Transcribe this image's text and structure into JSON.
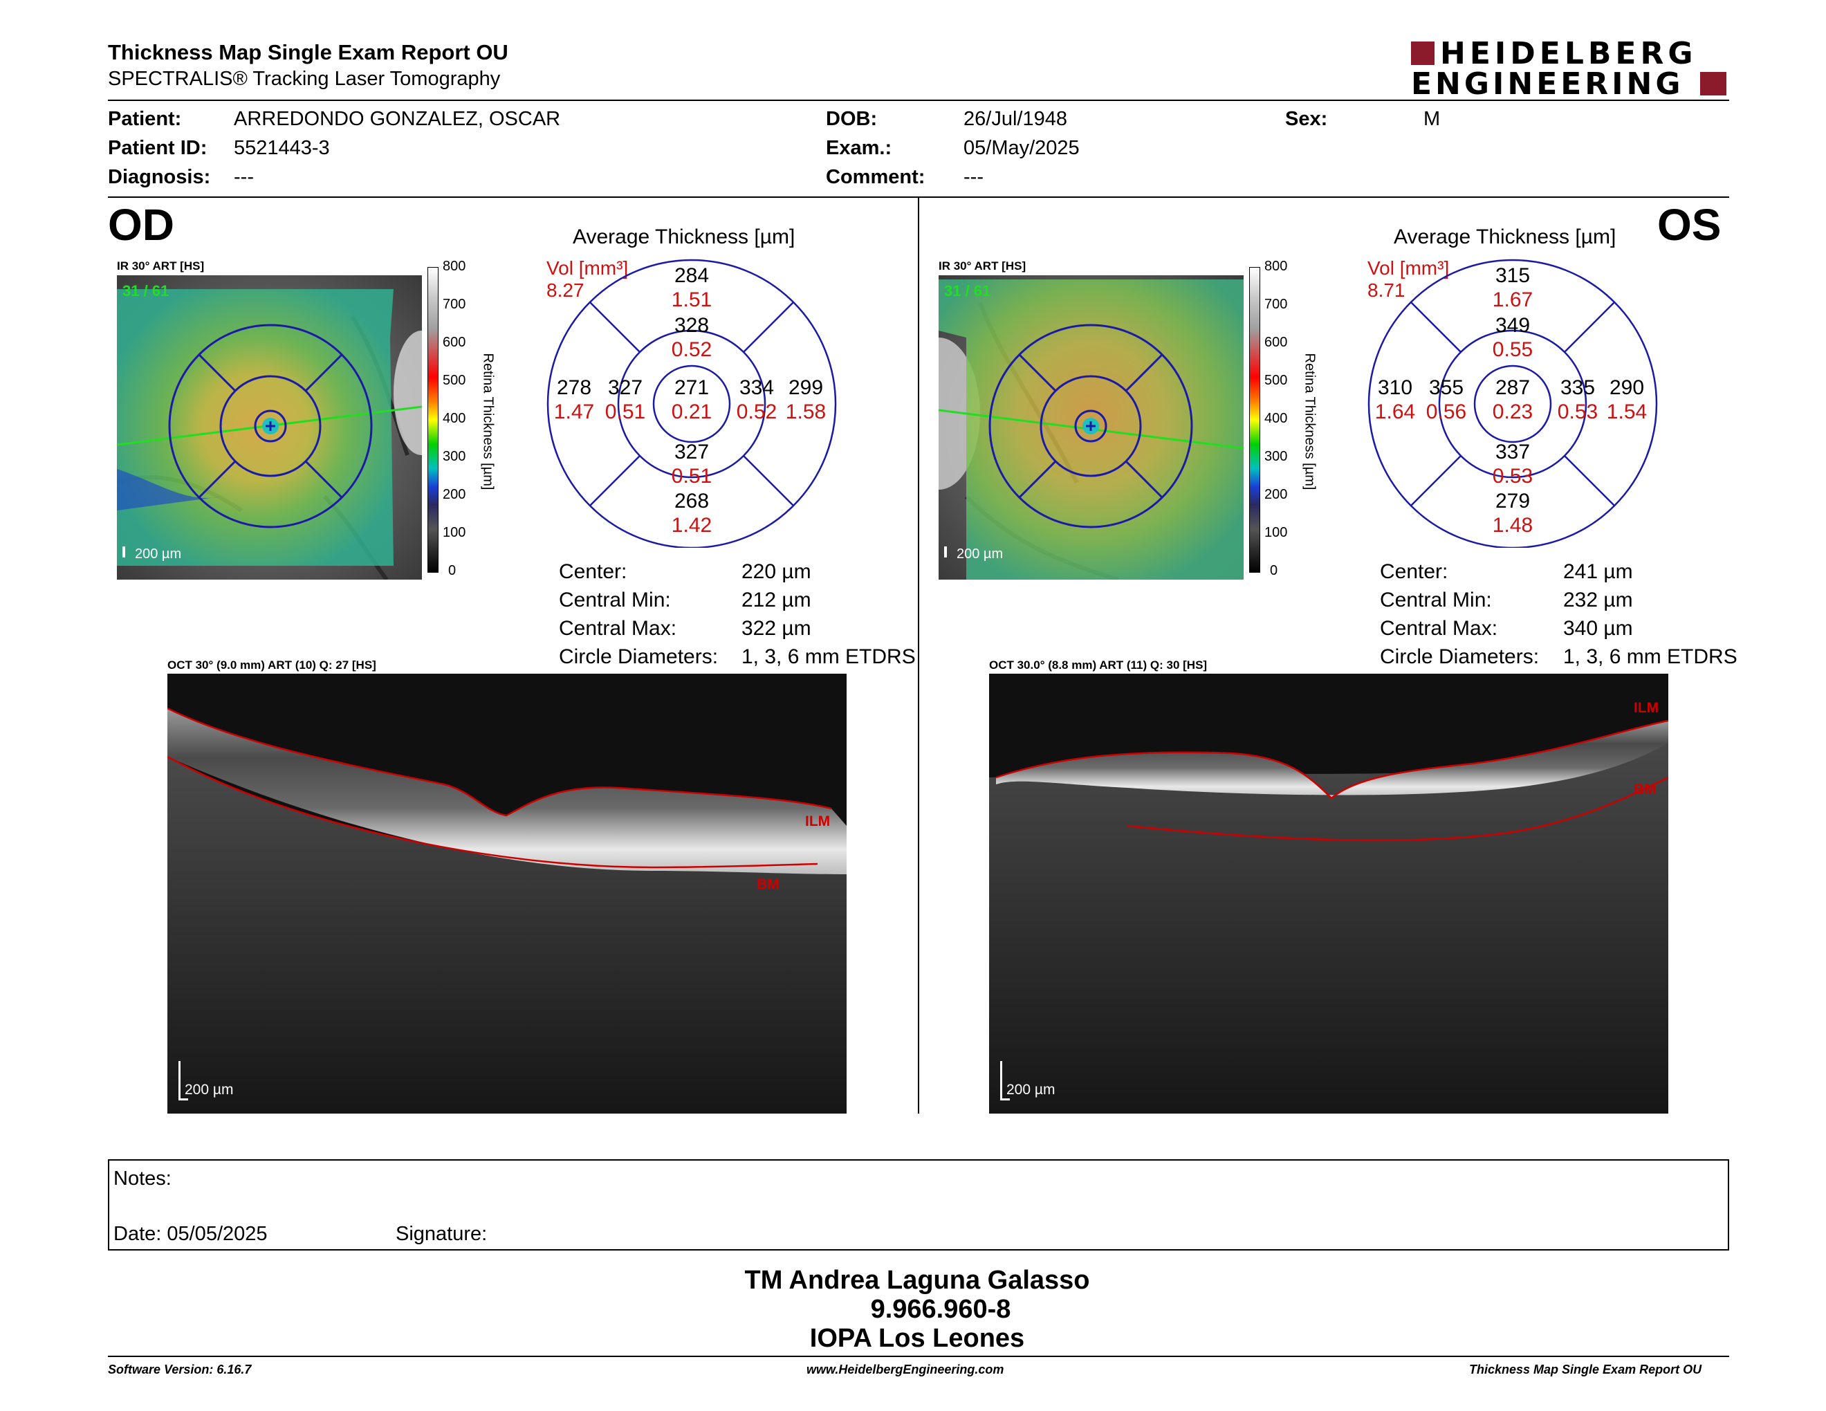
{
  "header": {
    "title": "Thickness Map Single Exam Report OU",
    "subtitle": "SPECTRALIS® Tracking Laser Tomography",
    "logo_line1": "HEIDELBERG",
    "logo_line2": "ENGINEERING",
    "logo_color": "#8b1a2b"
  },
  "patient": {
    "patient_label": "Patient:",
    "patient_value": "ARREDONDO GONZALEZ, OSCAR",
    "id_label": "Patient ID:",
    "id_value": "5521443-3",
    "diagnosis_label": "Diagnosis:",
    "diagnosis_value": "---",
    "dob_label": "DOB:",
    "dob_value": "26/Jul/1948",
    "exam_label": "Exam.:",
    "exam_value": "05/May/2025",
    "comment_label": "Comment:",
    "comment_value": "---",
    "sex_label": "Sex:",
    "sex_value": "M"
  },
  "colorbar": {
    "ticks": [
      "800",
      "700",
      "600",
      "500",
      "400",
      "300",
      "200",
      "100",
      "0"
    ],
    "label": "Retina  Thickness [µm]"
  },
  "od": {
    "eye": "OD",
    "fundus_label": "IR 30° ART [HS]",
    "fundus_count": "31 / 61",
    "fundus_scale": "200 µm",
    "avg_title": "Average Thickness [µm]",
    "vol_label": "Vol [mm³]",
    "vol_value": "8.27",
    "grid": {
      "outer_sup": "284",
      "outer_sup_vol": "1.51",
      "inner_sup": "328",
      "inner_sup_vol": "0.52",
      "outer_left": "278",
      "outer_left_vol": "1.47",
      "inner_left": "327",
      "inner_left_vol": "0.51",
      "center": "271",
      "center_vol": "0.21",
      "inner_right": "334",
      "inner_right_vol": "0.52",
      "outer_right": "299",
      "outer_right_vol": "1.58",
      "inner_inf": "327",
      "inner_inf_vol": "0.51",
      "outer_inf": "268",
      "outer_inf_vol": "1.42"
    },
    "stats": {
      "center_label": "Center:",
      "center_value": "220 µm",
      "min_label": "Central Min:",
      "min_value": "212 µm",
      "max_label": "Central Max:",
      "max_value": "322 µm",
      "diam_label": "Circle Diameters:",
      "diam_value": "1, 3, 6 mm ETDRS"
    },
    "oct_label": "OCT 30° (9.0 mm) ART (10) Q: 27 [HS]",
    "oct_scale": "200 µm",
    "ilm": "ILM",
    "bm": "BM"
  },
  "os": {
    "eye": "OS",
    "fundus_label": "IR 30° ART [HS]",
    "fundus_count": "31 / 61",
    "fundus_scale": "200 µm",
    "avg_title": "Average Thickness [µm]",
    "vol_label": "Vol [mm³]",
    "vol_value": "8.71",
    "grid": {
      "outer_sup": "315",
      "outer_sup_vol": "1.67",
      "inner_sup": "349",
      "inner_sup_vol": "0.55",
      "outer_left": "310",
      "outer_left_vol": "1.64",
      "inner_left": "355",
      "inner_left_vol": "0.56",
      "center": "287",
      "center_vol": "0.23",
      "inner_right": "335",
      "inner_right_vol": "0.53",
      "outer_right": "290",
      "outer_right_vol": "1.54",
      "inner_inf": "337",
      "inner_inf_vol": "0.53",
      "outer_inf": "279",
      "outer_inf_vol": "1.48"
    },
    "stats": {
      "center_label": "Center:",
      "center_value": "241 µm",
      "min_label": "Central Min:",
      "min_value": "232 µm",
      "max_label": "Central Max:",
      "max_value": "340 µm",
      "diam_label": "Circle Diameters:",
      "diam_value": "1, 3, 6 mm ETDRS"
    },
    "oct_label": "OCT 30.0° (8.8 mm) ART (11) Q: 30 [HS]",
    "oct_scale": "200 µm",
    "ilm": "ILM",
    "bm": "BM"
  },
  "notes": {
    "notes_label": "Notes:",
    "date_label": "Date: 05/05/2025",
    "signature_label": "Signature:"
  },
  "signature": {
    "line1": "TM Andrea Laguna Galasso",
    "line2": "9.966.960-8",
    "line3": "IOPA Los Leones"
  },
  "footer": {
    "left": "Software Version: 6.16.7",
    "center": "www.HeidelbergEngineering.com",
    "right": "Thickness Map Single Exam Report OU"
  },
  "colors": {
    "grid_blue": "#1a1aa6",
    "vol_red": "#cc1111",
    "line_red": "#cc0000"
  }
}
